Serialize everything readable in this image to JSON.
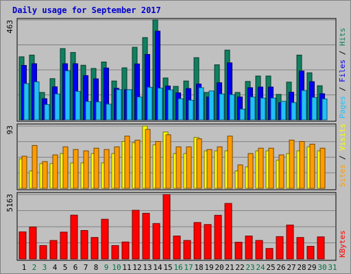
{
  "chart_data": {
    "type": "bar",
    "title": "Daily usage for September 2017",
    "days": [
      "1",
      "2",
      "3",
      "4",
      "5",
      "6",
      "7",
      "8",
      "9",
      "10",
      "11",
      "12",
      "13",
      "14",
      "15",
      "16",
      "17",
      "18",
      "19",
      "20",
      "21",
      "22",
      "23",
      "24",
      "25",
      "26",
      "27",
      "28",
      "29",
      "30",
      "31"
    ],
    "weekend_days": [
      "2",
      "3",
      "9",
      "10",
      "16",
      "17",
      "23",
      "24",
      "30",
      "31"
    ],
    "panels": [
      {
        "key": "hits",
        "max_label": "463",
        "ylim": [
          0,
          463
        ],
        "series": [
          {
            "name": "Hits",
            "color": "#108060",
            "values": [
              292,
              300,
              127,
              191,
              330,
              312,
              253,
              238,
              268,
              180,
              241,
              336,
              381,
              463,
              194,
              155,
              180,
              288,
              127,
              255,
              323,
              127,
              178,
              203,
              203,
              118,
              175,
              300,
              218,
              158,
              0
            ]
          },
          {
            "name": "Files",
            "color": "#0000ee",
            "values": [
              252,
              260,
              98,
              153,
              260,
              260,
              205,
              190,
              240,
              146,
              140,
              259,
              303,
              411,
              157,
              125,
              145,
              166,
              106,
              172,
              264,
              106,
              149,
              152,
              152,
              80,
              128,
              226,
              177,
              121,
              0
            ]
          },
          {
            "name": "Pages",
            "color": "#20c0f8",
            "values": [
              168,
              176,
              71,
              120,
              227,
              132,
              85,
              83,
              73,
              140,
              140,
              106,
              151,
              147,
              139,
              98,
              91,
              149,
              134,
              120,
              117,
              50,
              106,
              101,
              101,
              86,
              80,
              136,
              104,
              97,
              0
            ]
          }
        ],
        "axis_label": [
          "Pages",
          "Files",
          "Hits"
        ]
      },
      {
        "key": "visits",
        "max_label": "93",
        "ylim": [
          0,
          93
        ],
        "series": [
          {
            "name": "Visits",
            "color": "#ffff00",
            "values": [
              44,
              26,
              37,
              37,
              52,
              38,
              38,
              52,
              38,
              52,
              70,
              68,
              93,
              65,
              84,
              52,
              52,
              76,
              56,
              56,
              56,
              26,
              32,
              56,
              56,
              42,
              52,
              56,
              62,
              56,
              0
            ]
          },
          {
            "name": "Sites",
            "color": "#ff9c00",
            "values": [
              48,
              64,
              40,
              50,
              62,
              58,
              56,
              60,
              58,
              62,
              78,
              72,
              88,
              70,
              80,
              62,
              62,
              74,
              58,
              62,
              78,
              35,
              52,
              60,
              60,
              50,
              72,
              70,
              66,
              60,
              0
            ]
          }
        ],
        "axis_label": [
          "Sites",
          "Visits"
        ]
      },
      {
        "key": "kbytes",
        "max_label": "5163",
        "ylim": [
          0,
          5163
        ],
        "series": [
          {
            "name": "KBytes",
            "color": "#ff0000",
            "values": [
              2170,
              2560,
              1070,
              1480,
              2150,
              3510,
              2280,
              1720,
              3180,
              1070,
              1360,
              3900,
              3660,
              2840,
              5163,
              1840,
              1480,
              2920,
              2760,
              3500,
              4450,
              1340,
              1840,
              1480,
              840,
              1790,
              2720,
              1720,
              1010,
              1770,
              0
            ]
          }
        ],
        "axis_label": [
          "KBytes"
        ]
      }
    ]
  }
}
